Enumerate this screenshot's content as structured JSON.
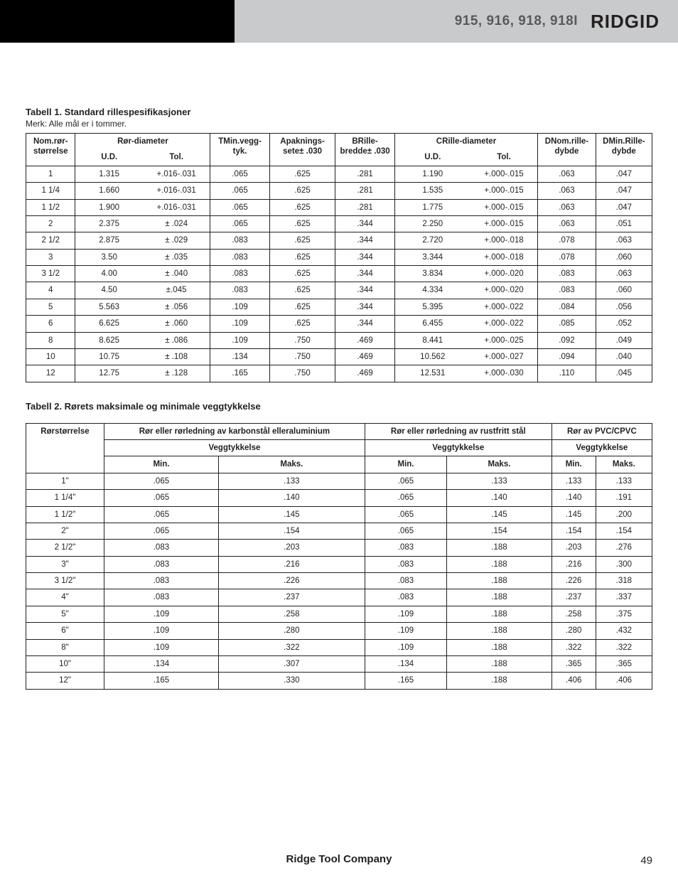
{
  "header": {
    "models": "915, 916, 918, 918I",
    "brand": "RIDGID"
  },
  "footer": {
    "company": "Ridge Tool Company",
    "page": "49"
  },
  "table1": {
    "title": "Tabell 1. Standard rillespesifikasjoner",
    "note": "Merk: Alle mål er i tommer.",
    "head": {
      "nom": "Nom.\nrør-\nstørrelse",
      "pipe_dia": "Rør-\ndiameter",
      "ud": "U.D.",
      "tol": "Tol.",
      "t": "T\nMin.\nvegg-\ntyk.",
      "a": "A\npaknings-\nsete\n± .030",
      "b": "B\nRille-\nbredde\n± .030",
      "c": "C\nRille-\ndiameter",
      "d_nom": "D\nNom.\nrille-\ndybde",
      "d_min": "D\nMin.\nRille-\ndybde"
    },
    "rows": [
      {
        "nom": "1",
        "ud": "1.315",
        "tol": "+.016\n-.031",
        "t": ".065",
        "a": ".625",
        "b": ".281",
        "cud": "1.190",
        "ctol": "+.000\n-.015",
        "dnom": ".063",
        "dmin": ".047"
      },
      {
        "nom": "1 1/4",
        "ud": "1.660",
        "tol": "+.016\n-.031",
        "t": ".065",
        "a": ".625",
        "b": ".281",
        "cud": "1.535",
        "ctol": "+.000\n-.015",
        "dnom": ".063",
        "dmin": ".047"
      },
      {
        "nom": "1 1/2",
        "ud": "1.900",
        "tol": "+.016\n-.031",
        "t": ".065",
        "a": ".625",
        "b": ".281",
        "cud": "1.775",
        "ctol": "+.000\n-.015",
        "dnom": ".063",
        "dmin": ".047"
      },
      {
        "nom": "2",
        "ud": "2.375",
        "tol": "± .024",
        "t": ".065",
        "a": ".625",
        "b": ".344",
        "cud": "2.250",
        "ctol": "+.000\n-.015",
        "dnom": ".063",
        "dmin": ".051"
      },
      {
        "nom": "2 1/2",
        "ud": "2.875",
        "tol": "± .029",
        "t": ".083",
        "a": ".625",
        "b": ".344",
        "cud": "2.720",
        "ctol": "+.000\n-.018",
        "dnom": ".078",
        "dmin": ".063"
      },
      {
        "nom": "3",
        "ud": "3.50",
        "tol": "± .035",
        "t": ".083",
        "a": ".625",
        "b": ".344",
        "cud": "3.344",
        "ctol": "+.000\n-.018",
        "dnom": ".078",
        "dmin": ".060"
      },
      {
        "nom": "3 1/2",
        "ud": "4.00",
        "tol": "± .040",
        "t": ".083",
        "a": ".625",
        "b": ".344",
        "cud": "3.834",
        "ctol": "+.000\n-.020",
        "dnom": ".083",
        "dmin": ".063"
      },
      {
        "nom": "4",
        "ud": "4.50",
        "tol": "±.045",
        "t": ".083",
        "a": ".625",
        "b": ".344",
        "cud": "4.334",
        "ctol": "+.000\n-.020",
        "dnom": ".083",
        "dmin": ".060"
      },
      {
        "nom": "5",
        "ud": "5.563",
        "tol": "± .056",
        "t": ".109",
        "a": ".625",
        "b": ".344",
        "cud": "5.395",
        "ctol": "+.000\n-.022",
        "dnom": ".084",
        "dmin": ".056"
      },
      {
        "nom": "6",
        "ud": "6.625",
        "tol": "± .060",
        "t": ".109",
        "a": ".625",
        "b": ".344",
        "cud": "6.455",
        "ctol": "+.000\n-.022",
        "dnom": ".085",
        "dmin": ".052"
      },
      {
        "nom": "8",
        "ud": "8.625",
        "tol": "± .086",
        "t": ".109",
        "a": ".750",
        "b": ".469",
        "cud": "8.441",
        "ctol": "+.000\n-.025",
        "dnom": ".092",
        "dmin": ".049"
      },
      {
        "nom": "10",
        "ud": "10.75",
        "tol": "± .108",
        "t": ".134",
        "a": ".750",
        "b": ".469",
        "cud": "10.562",
        "ctol": "+.000\n-.027",
        "dnom": ".094",
        "dmin": ".040"
      },
      {
        "nom": "12",
        "ud": "12.75",
        "tol": "± .128",
        "t": ".165",
        "a": ".750",
        "b": ".469",
        "cud": "12.531",
        "ctol": "+.000\n-.030",
        "dnom": ".110",
        "dmin": ".045"
      }
    ]
  },
  "table2": {
    "title": "Tabell 2. Rørets maksimale og minimale veggtykkelse",
    "head": {
      "size": "Rørstørrelse",
      "carbon": "Rør eller rørledning av karbonstål eller\naluminium",
      "stainless": "Rør eller rørledning av rustfritt stål",
      "pvc": "Rør av PVC/CPVC",
      "wall": "Veggtykkelse",
      "min": "Min.",
      "max": "Maks."
    },
    "rows": [
      {
        "size": "1\"",
        "c_min": ".065",
        "c_max": ".133",
        "s_min": ".065",
        "s_max": ".133",
        "p_min": ".133",
        "p_max": ".133"
      },
      {
        "size": "1 1/4\"",
        "c_min": ".065",
        "c_max": ".140",
        "s_min": ".065",
        "s_max": ".140",
        "p_min": ".140",
        "p_max": ".191"
      },
      {
        "size": "1 1/2\"",
        "c_min": ".065",
        "c_max": ".145",
        "s_min": ".065",
        "s_max": ".145",
        "p_min": ".145",
        "p_max": ".200"
      },
      {
        "size": "2\"",
        "c_min": ".065",
        "c_max": ".154",
        "s_min": ".065",
        "s_max": ".154",
        "p_min": ".154",
        "p_max": ".154"
      },
      {
        "size": "2 1/2\"",
        "c_min": ".083",
        "c_max": ".203",
        "s_min": ".083",
        "s_max": ".188",
        "p_min": ".203",
        "p_max": ".276"
      },
      {
        "size": "3\"",
        "c_min": ".083",
        "c_max": ".216",
        "s_min": ".083",
        "s_max": ".188",
        "p_min": ".216",
        "p_max": ".300"
      },
      {
        "size": "3 1/2\"",
        "c_min": ".083",
        "c_max": ".226",
        "s_min": ".083",
        "s_max": ".188",
        "p_min": ".226",
        "p_max": ".318"
      },
      {
        "size": "4\"",
        "c_min": ".083",
        "c_max": ".237",
        "s_min": ".083",
        "s_max": ".188",
        "p_min": ".237",
        "p_max": ".337"
      },
      {
        "size": "5\"",
        "c_min": ".109",
        "c_max": ".258",
        "s_min": ".109",
        "s_max": ".188",
        "p_min": ".258",
        "p_max": ".375"
      },
      {
        "size": "6\"",
        "c_min": ".109",
        "c_max": ".280",
        "s_min": ".109",
        "s_max": ".188",
        "p_min": ".280",
        "p_max": ".432"
      },
      {
        "size": "8\"",
        "c_min": ".109",
        "c_max": ".322",
        "s_min": ".109",
        "s_max": ".188",
        "p_min": ".322",
        "p_max": ".322"
      },
      {
        "size": "10\"",
        "c_min": ".134",
        "c_max": ".307",
        "s_min": ".134",
        "s_max": ".188",
        "p_min": ".365",
        "p_max": ".365"
      },
      {
        "size": "12\"",
        "c_min": ".165",
        "c_max": ".330",
        "s_min": ".165",
        "s_max": ".188",
        "p_min": ".406",
        "p_max": ".406"
      }
    ]
  }
}
